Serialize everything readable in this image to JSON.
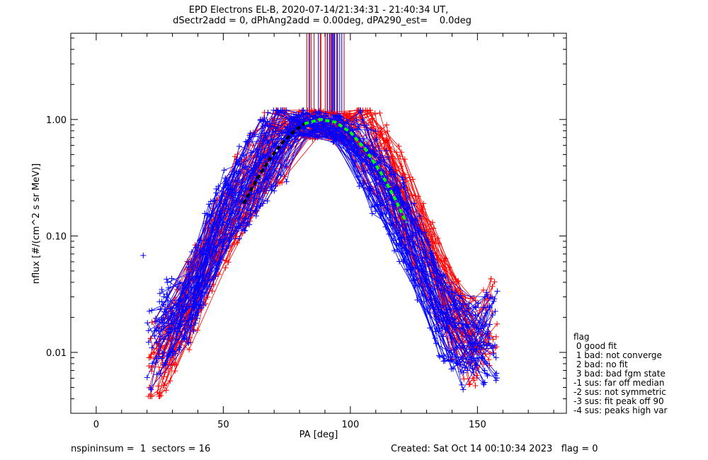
{
  "chart_data": {
    "type": "line",
    "title_lines": [
      "EPD Electrons EL-B, 2020-07-14/21:34:31 - 21:40:34 UT,",
      "dSectr2add = 0, dPhAng2add = 0.00deg, dPA290_est=    0.0deg"
    ],
    "xlabel": "PA [deg]",
    "ylabel": "nflux [#/(cm^2 s sr MeV)]",
    "xlim": [
      -10,
      185
    ],
    "ylim": [
      0.003,
      5.5
    ],
    "yscale": "log",
    "x_ticks": [
      0,
      50,
      100,
      150
    ],
    "x_tick_labels": [
      "0",
      "50",
      "100",
      "150"
    ],
    "y_ticks": [
      0.01,
      0.1,
      1.0
    ],
    "y_tick_labels": [
      "0.01",
      "0.10",
      "1.00"
    ],
    "series": [
      {
        "color": "#ff0000",
        "marker": "+",
        "representative_pa": [
          24,
          30,
          38,
          45,
          55,
          62,
          70,
          80,
          90,
          100,
          110,
          118,
          125,
          133,
          140,
          148,
          156
        ],
        "representative_flux": [
          0.008,
          0.014,
          0.03,
          0.07,
          0.2,
          0.38,
          0.6,
          0.9,
          0.9,
          0.85,
          0.55,
          0.28,
          0.12,
          0.05,
          0.02,
          0.012,
          0.02
        ]
      },
      {
        "color": "#0000ff",
        "marker": "+",
        "representative_pa": [
          22,
          28,
          36,
          44,
          52,
          60,
          68,
          80,
          90,
          100,
          108,
          116,
          124,
          132,
          140,
          148,
          154
        ],
        "representative_flux": [
          0.01,
          0.018,
          0.025,
          0.08,
          0.18,
          0.3,
          0.5,
          0.95,
          0.9,
          0.75,
          0.4,
          0.2,
          0.1,
          0.03,
          0.015,
          0.01,
          0.014
        ]
      },
      {
        "color": "#000000",
        "style": "dashed",
        "pa": [
          58,
          63,
          68,
          73,
          78,
          82
        ],
        "flux": [
          0.19,
          0.3,
          0.45,
          0.62,
          0.8,
          0.92
        ]
      },
      {
        "color": "#00ff00",
        "style": "dashed",
        "pa": [
          82,
          88,
          94,
          100,
          106,
          112,
          118,
          122
        ],
        "flux": [
          0.92,
          1.0,
          0.95,
          0.78,
          0.55,
          0.35,
          0.2,
          0.13
        ]
      }
    ],
    "grid": false
  },
  "legend": {
    "title": "flag",
    "items": [
      " 0 good fit",
      " 1 bad: not converge",
      " 2 bad: no fit",
      " 3 bad: bad fgm state",
      "-1 sus: far off median",
      "-2 sus: not symmetric",
      "-3 sus: fit peak off 90",
      "-4 sus: peaks high var"
    ]
  },
  "footer": {
    "left": "nspininsum =  1  sectors = 16",
    "right": "Created: Sat Oct 14 00:10:34 2023   flag = 0"
  }
}
